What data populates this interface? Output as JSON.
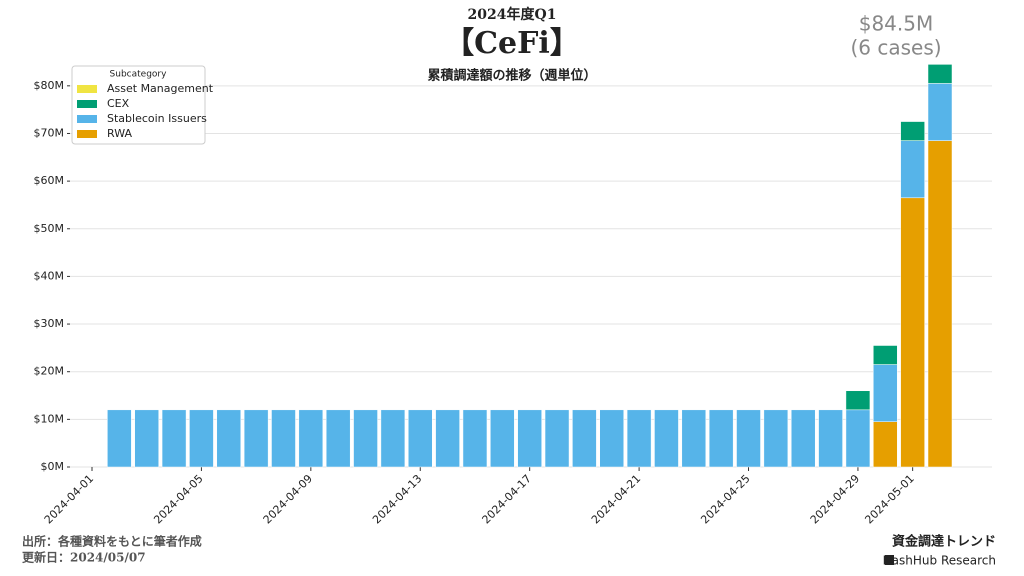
{
  "chart_data": {
    "type": "stacked_bar",
    "title": "2024年度Q1",
    "heading": "【CeFi】",
    "subtitle": "累積調達額の推移（週単位）",
    "annotation": [
      "$84.5M",
      "(6 cases)"
    ],
    "legend_title": "Subcategory",
    "legend_position": "upper left",
    "x": [
      "2024-04-02",
      "2024-04-03",
      "2024-04-04",
      "2024-04-05",
      "2024-04-06",
      "2024-04-07",
      "2024-04-08",
      "2024-04-09",
      "2024-04-10",
      "2024-04-11",
      "2024-04-12",
      "2024-04-13",
      "2024-04-14",
      "2024-04-15",
      "2024-04-16",
      "2024-04-17",
      "2024-04-18",
      "2024-04-19",
      "2024-04-20",
      "2024-04-21",
      "2024-04-22",
      "2024-04-23",
      "2024-04-24",
      "2024-04-25",
      "2024-04-26",
      "2024-04-27",
      "2024-04-28",
      "2024-04-29",
      "2024-04-30",
      "2024-05-01",
      "2024-05-02"
    ],
    "xlim": [
      "2024-04-01",
      "2024-05-02"
    ],
    "xticks": [
      "2024-04-01",
      "2024-04-05",
      "2024-04-09",
      "2024-04-13",
      "2024-04-17",
      "2024-04-21",
      "2024-04-25",
      "2024-04-29",
      "2024-05-01"
    ],
    "series": [
      {
        "name": "Asset Management",
        "color": "#f0e442",
        "values": [
          0,
          0,
          0,
          0,
          0,
          0,
          0,
          0,
          0,
          0,
          0,
          0,
          0,
          0,
          0,
          0,
          0,
          0,
          0,
          0,
          0,
          0,
          0,
          0,
          0,
          0,
          0,
          0,
          0,
          0,
          0
        ]
      },
      {
        "name": "CEX",
        "color": "#009e73",
        "values": [
          0,
          0,
          0,
          0,
          0,
          0,
          0,
          0,
          0,
          0,
          0,
          0,
          0,
          0,
          0,
          0,
          0,
          0,
          0,
          0,
          0,
          0,
          0,
          0,
          0,
          0,
          0,
          4,
          4,
          4,
          4
        ]
      },
      {
        "name": "Stablecoin Issuers",
        "color": "#56b4e9",
        "values": [
          12,
          12,
          12,
          12,
          12,
          12,
          12,
          12,
          12,
          12,
          12,
          12,
          12,
          12,
          12,
          12,
          12,
          12,
          12,
          12,
          12,
          12,
          12,
          12,
          12,
          12,
          12,
          12,
          12,
          12,
          12
        ]
      },
      {
        "name": "RWA",
        "color": "#e69f00",
        "values": [
          0,
          0,
          0,
          0,
          0,
          0,
          0,
          0,
          0,
          0,
          0,
          0,
          0,
          0,
          0,
          0,
          0,
          0,
          0,
          0,
          0,
          0,
          0,
          0,
          0,
          0,
          0,
          0,
          9.5,
          56.5,
          68.5
        ]
      }
    ],
    "ylim": [
      0,
      85
    ],
    "yticks": [
      {
        "value": 0,
        "label": "$0M"
      },
      {
        "value": 10,
        "label": "$10M"
      },
      {
        "value": 20,
        "label": "$20M"
      },
      {
        "value": 30,
        "label": "$30M"
      },
      {
        "value": 40,
        "label": "$40M"
      },
      {
        "value": 50,
        "label": "$50M"
      },
      {
        "value": 60,
        "label": "$60M"
      },
      {
        "value": 70,
        "label": "$70M"
      },
      {
        "value": 80,
        "label": "$80M"
      }
    ],
    "grid": true
  },
  "footer": {
    "source": "出所：各種資料をもとに筆者作成",
    "updated": "更新日：2024/05/07",
    "brand": "資金調達トレンド",
    "company": "HashHub Research"
  }
}
